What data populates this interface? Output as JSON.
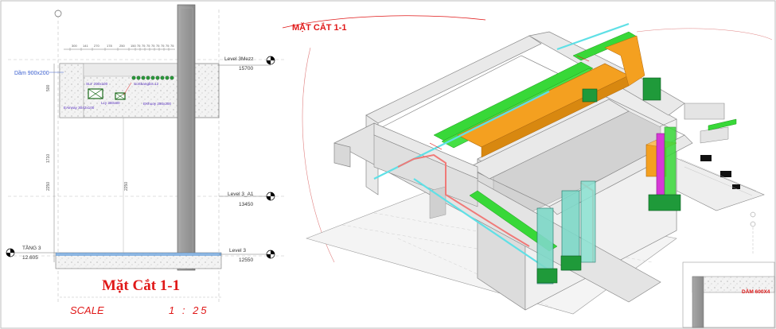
{
  "section_drawing": {
    "beam_label": "Dầm 900x200",
    "top_dims": [
      "300",
      "141",
      "270",
      "178",
      "250",
      "150",
      "75",
      "75",
      "75",
      "75",
      "75",
      "75",
      "75",
      "75"
    ],
    "left_dims_upper": [
      "500"
    ],
    "left_dims_lower": [
      "1710",
      "2250"
    ],
    "inner_dims": [
      "2250"
    ],
    "duct_labels": [
      "SLY 200x100",
      "SoShangbis 12",
      "Lcy 260x80",
      "EAirway 3042x100",
      "EKhuoy 250x200"
    ],
    "levels": [
      {
        "name": "Level 3Mezz",
        "value": "15700"
      },
      {
        "name": "Level 3_A1",
        "value": "13450"
      },
      {
        "name": "Level 3",
        "value": "12550"
      }
    ],
    "left_level": {
      "name": "TẦNG 3",
      "value": "12.605"
    },
    "title": "Mặt Cắt 1-1",
    "scale_label": "SCALE",
    "scale_value": "1 : 25"
  },
  "model_view": {
    "section_tag": "MẶT CẮT 1-1",
    "corner_label": "DẦM 600X4"
  },
  "colors": {
    "red": "#e01818",
    "concrete": "#e8e8e8",
    "wall_dark": "#9c9c9c",
    "green": "#38d838",
    "orange": "#f4a020",
    "cyan": "#5fe0e6",
    "magenta": "#d638d6",
    "salmon": "#f07a78"
  }
}
